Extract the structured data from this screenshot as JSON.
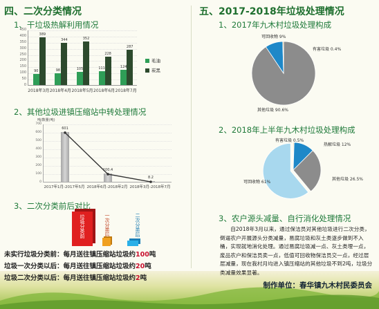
{
  "left": {
    "section_title": "四、二次分类情况",
    "sub1": {
      "title": "1、干垃圾热解利用情况",
      "chart_data": {
        "type": "bar",
        "categories": [
          "2018年3月",
          "2018年4月",
          "2018年5月",
          "2018年6月",
          "2018年7月"
        ],
        "series": [
          {
            "name": "毛油",
            "values": [
              90,
              98,
              105,
              111,
              124
            ]
          },
          {
            "name": "炭黑",
            "values": [
              389,
              344,
              352,
              228,
              287
            ]
          }
        ],
        "ylim": [
          0,
          450
        ],
        "yticks": [
          0,
          50,
          100,
          150,
          200,
          250,
          300,
          350,
          400,
          450
        ],
        "colors": [
          "#2f9e57",
          "#2d4a2d"
        ]
      }
    },
    "sub2": {
      "title": "2、其他垃圾进镇压缩站中转处理情况",
      "chart_data": {
        "type": "bar",
        "ylabel": "吨/数量(吨)",
        "categories": [
          "2017年1月-2017年5月",
          "2018年6月-2018年2月",
          "2018年3月-2018年7月"
        ],
        "values": [
          601,
          100.4,
          8.2
        ],
        "value_labels": [
          "601",
          "100.4",
          "8.2"
        ],
        "ylim": [
          0,
          700
        ],
        "yticks": [
          0,
          100,
          200,
          300,
          400,
          500,
          600,
          700
        ],
        "colors": {
          "bar": "#b5b5b5",
          "line": "#333333"
        }
      }
    },
    "sub3": {
      "title": "3、二次分类前后对比",
      "cubes": [
        {
          "label": "垃圾分类前",
          "color": "#e02020"
        },
        {
          "label": "一次分类后",
          "color": "#f0a020"
        },
        {
          "label": "二次分类后",
          "color": "#2ab0e8"
        }
      ],
      "lines": [
        {
          "prefix": "未实行垃圾分类前：每月送往镇压缩站垃圾约",
          "value": "100",
          "suffix": "吨"
        },
        {
          "prefix": "垃圾一次分类以后：每月送往镇压缩站垃圾约",
          "value": "20",
          "suffix": "吨"
        },
        {
          "prefix": "垃圾二次分类以后：每月送往镇压缩站垃圾约",
          "value": "2",
          "suffix": "吨"
        }
      ]
    }
  },
  "right": {
    "section_title": "五、2017-2018年垃圾处理情况",
    "sub1": {
      "title": "1、2017年九木村垃圾处理构成",
      "chart_data": {
        "type": "pie",
        "slices": [
          {
            "label": "其他垃圾",
            "value": 90.6,
            "text": "其他垃圾  90.6%",
            "color": "#8c8c8c"
          },
          {
            "label": "可回收物",
            "value": 9,
            "text": "可回收物 9%",
            "color": "#1e88c8"
          },
          {
            "label": "有害垃圾",
            "value": 0.4,
            "text": "有害垃圾 0.4%",
            "color": "#f0a020"
          }
        ]
      }
    },
    "sub2": {
      "title": "2、2018年上半年九木村垃圾处理构成",
      "chart_data": {
        "type": "pie",
        "slices": [
          {
            "label": "可回收物",
            "value": 61,
            "text": "可回收物 61%",
            "color": "#a8d8ee"
          },
          {
            "label": "有害垃圾",
            "value": 0.5,
            "text": "有害垃圾 0.5%",
            "color": "#f0a020"
          },
          {
            "label": "热解垃圾",
            "value": 12,
            "text": "热解垃圾 12%",
            "color": "#1e88c8"
          },
          {
            "label": "其他垃圾",
            "value": 26.5,
            "text": "其他垃圾  26.5%",
            "color": "#8c8c8c"
          }
        ]
      }
    },
    "sub3": {
      "title": "3、农户源头减量、自行消化处理情况",
      "paragraph": "自2018年3月以来，通过保洁员对其他垃圾进行二次分类，倒逼农户开展源头分类减量，易腐垃圾和灰土类逐步做到不入桶，实现就地消化处理。通过易腐垃圾减一点、灰土类埋一点，废品农户和保洁员卖一点，低值可回收物保洁员交一点，经过层层减量，现在我村月均进入镇压缩站的其他垃圾不到2吨，垃圾分类减量效果显著。"
    }
  },
  "footer": {
    "text": "制作单位：春华镇九木村民委员会"
  }
}
